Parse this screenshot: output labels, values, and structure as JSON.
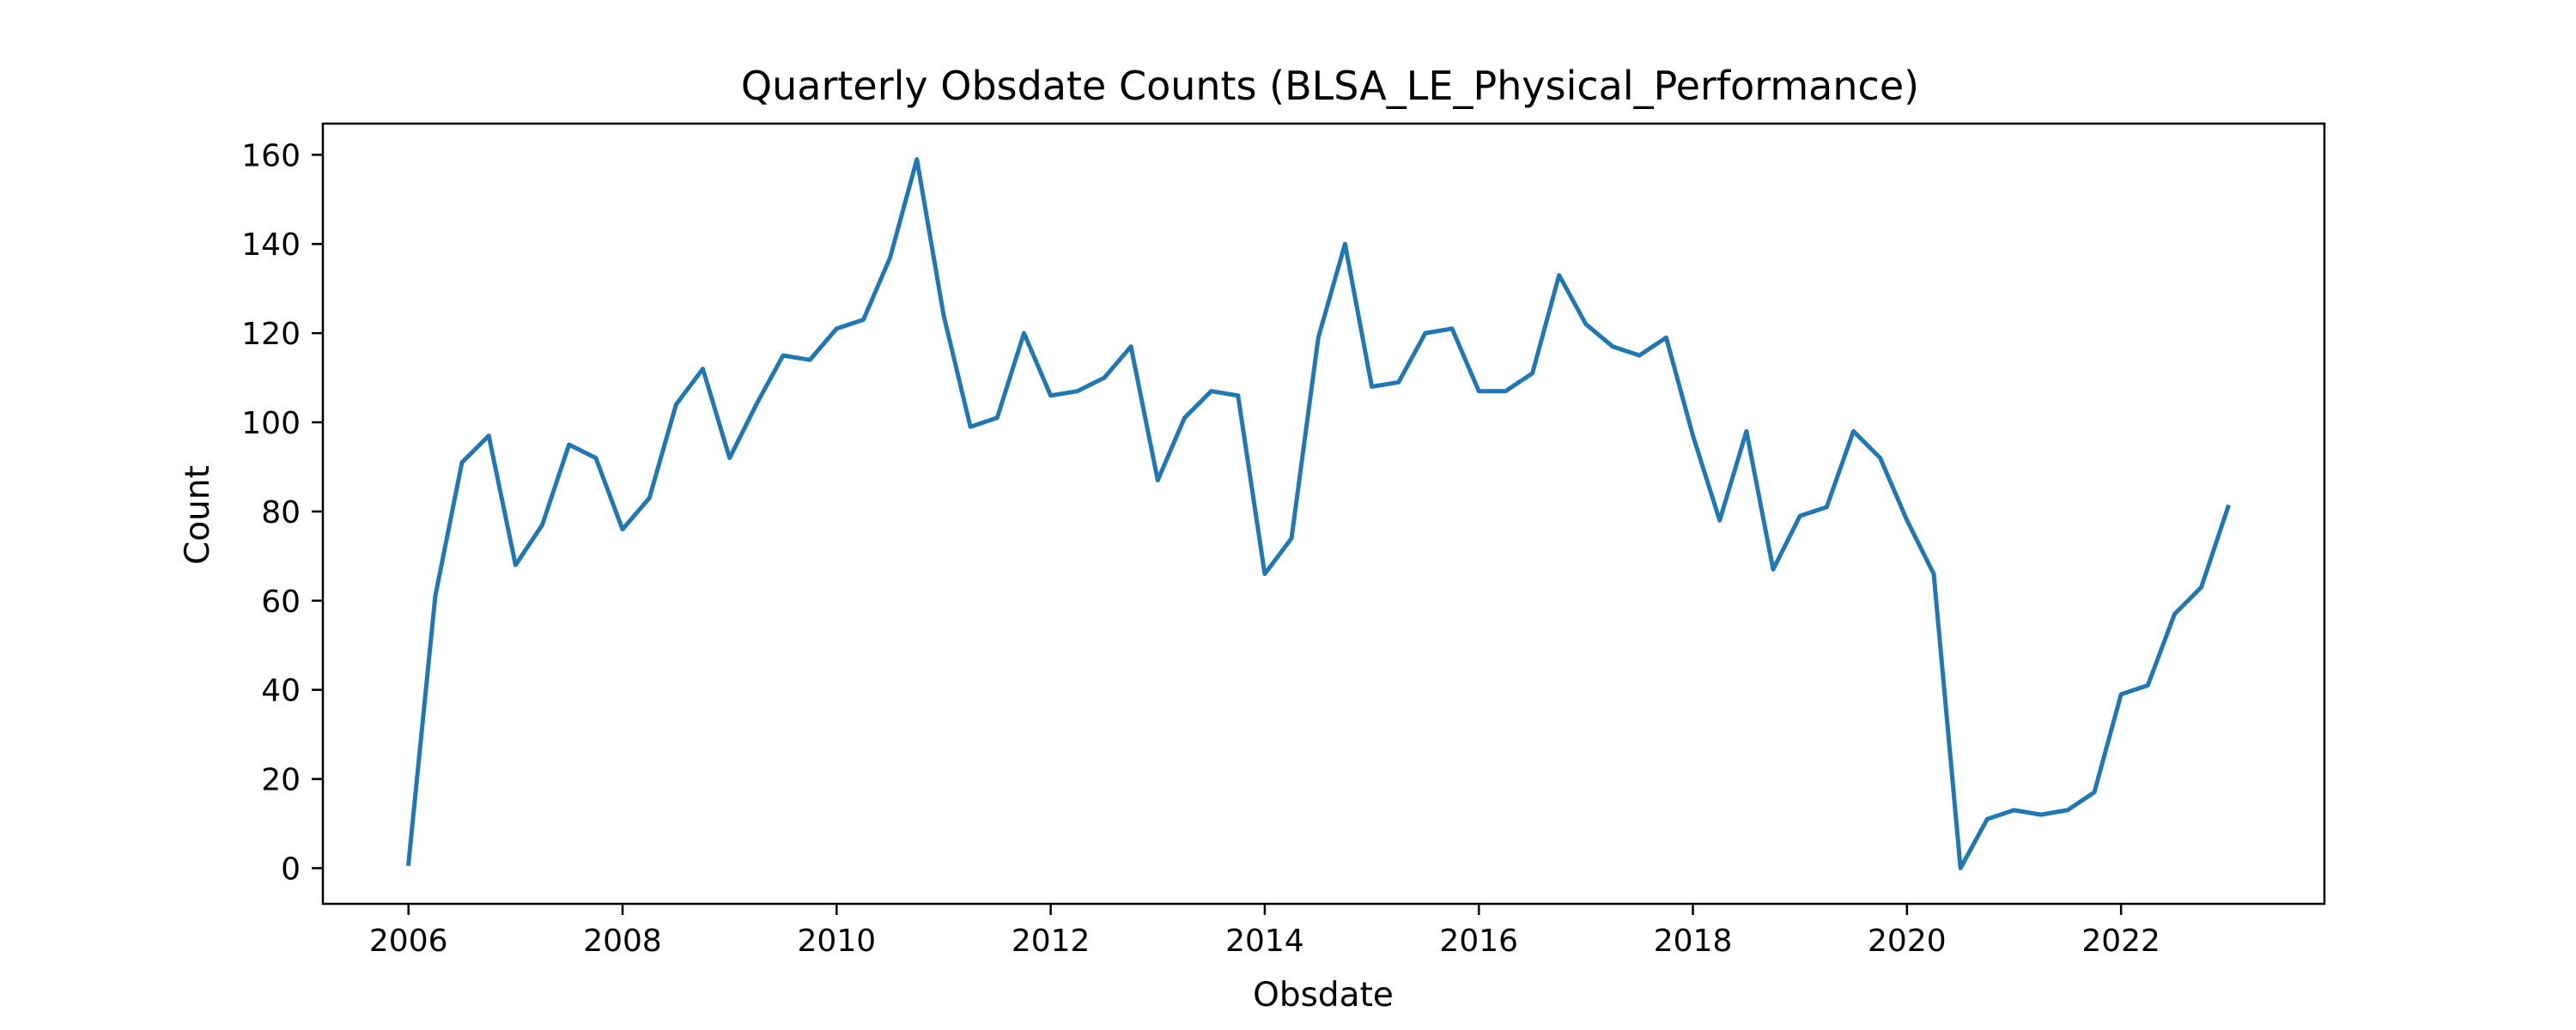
{
  "chart_data": {
    "type": "line",
    "title": "Quarterly Obsdate Counts (BLSA_LE_Physical_Performance)",
    "xlabel": "Obsdate",
    "ylabel": "Count",
    "xlim": [
      2005.2,
      2023.9
    ],
    "ylim": [
      -8,
      167
    ],
    "x_ticks": [
      2006,
      2008,
      2010,
      2012,
      2014,
      2016,
      2018,
      2020,
      2022
    ],
    "y_ticks": [
      0,
      20,
      40,
      60,
      80,
      100,
      120,
      140,
      160
    ],
    "grid": false,
    "legend": "none",
    "series_color": "#1f77b4",
    "series": [
      {
        "x": [
          "2006-Q1",
          "2006-Q2",
          "2006-Q3",
          "2006-Q4",
          "2007-Q1",
          "2007-Q2",
          "2007-Q3",
          "2007-Q4",
          "2008-Q1",
          "2008-Q2",
          "2008-Q3",
          "2008-Q4",
          "2009-Q1",
          "2009-Q2",
          "2009-Q3",
          "2009-Q4",
          "2010-Q1",
          "2010-Q2",
          "2010-Q3",
          "2010-Q4",
          "2011-Q1",
          "2011-Q2",
          "2011-Q3",
          "2011-Q4",
          "2012-Q1",
          "2012-Q2",
          "2012-Q3",
          "2012-Q4",
          "2013-Q1",
          "2013-Q2",
          "2013-Q3",
          "2013-Q4",
          "2014-Q1",
          "2014-Q2",
          "2014-Q3",
          "2014-Q4",
          "2015-Q1",
          "2015-Q2",
          "2015-Q3",
          "2015-Q4",
          "2016-Q1",
          "2016-Q2",
          "2016-Q3",
          "2016-Q4",
          "2017-Q1",
          "2017-Q2",
          "2017-Q3",
          "2017-Q4",
          "2018-Q1",
          "2018-Q2",
          "2018-Q3",
          "2018-Q4",
          "2019-Q1",
          "2019-Q2",
          "2019-Q3",
          "2019-Q4",
          "2020-Q1",
          "2020-Q2",
          "2020-Q3",
          "2020-Q4",
          "2021-Q1",
          "2021-Q2",
          "2021-Q3",
          "2021-Q4",
          "2022-Q1",
          "2022-Q2",
          "2022-Q3",
          "2022-Q4",
          "2023-Q1"
        ],
        "values": [
          1,
          61,
          91,
          97,
          68,
          77,
          95,
          92,
          76,
          83,
          104,
          112,
          92,
          104,
          115,
          114,
          121,
          123,
          137,
          159,
          124,
          99,
          101,
          120,
          106,
          107,
          110,
          117,
          87,
          101,
          107,
          106,
          66,
          74,
          119,
          140,
          108,
          109,
          120,
          121,
          107,
          107,
          111,
          133,
          122,
          117,
          115,
          119,
          97,
          78,
          98,
          67,
          79,
          81,
          98,
          92,
          78,
          66,
          0,
          11,
          13,
          12,
          13,
          17,
          39,
          41,
          57,
          63,
          81
        ]
      }
    ]
  }
}
